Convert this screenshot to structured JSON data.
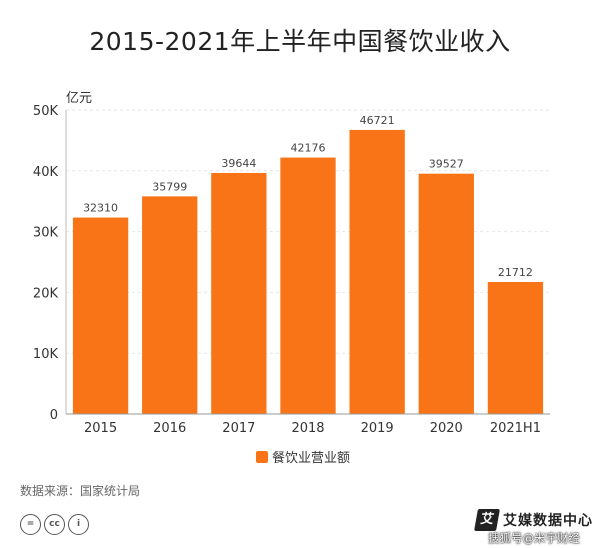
{
  "chart_data": {
    "type": "bar",
    "title": "2015-2021年上半年中国餐饮业收入",
    "unit_label": "亿元",
    "categories": [
      "2015",
      "2016",
      "2017",
      "2018",
      "2019",
      "2020",
      "2021H1"
    ],
    "series": [
      {
        "name": "餐饮业营业额",
        "values": [
          32310,
          35799,
          39644,
          42176,
          46721,
          39527,
          21712
        ]
      }
    ],
    "data_labels": [
      "32310",
      "35799",
      "39644",
      "42176",
      "46721",
      "39527",
      "21712"
    ],
    "ylim": [
      0,
      50000
    ],
    "yticks": [
      0,
      10000,
      20000,
      30000,
      40000,
      50000
    ],
    "ytick_labels": [
      "0",
      "10K",
      "20K",
      "30K",
      "40K",
      "50K"
    ],
    "grid": true,
    "legend_position": "bottom-center",
    "bar_color": "#F97417"
  },
  "footer": {
    "source": "数据来源：国家统计局",
    "license_icons": [
      "=",
      "cc",
      "i"
    ],
    "brand_logo": "艾",
    "brand_name": "艾媒数据中心",
    "watermark": "搜狐号@米宇财经"
  }
}
